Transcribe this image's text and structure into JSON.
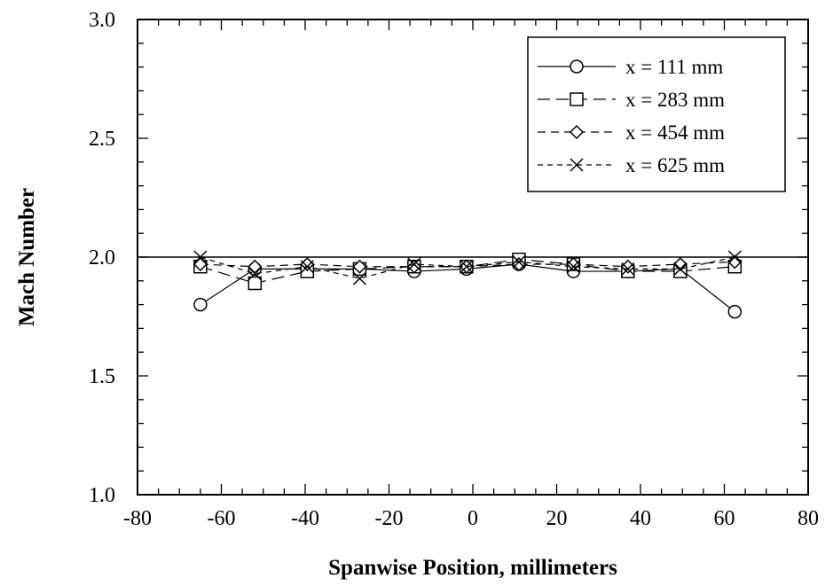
{
  "chart_data": {
    "type": "line",
    "title": "",
    "xlabel": "Spanwise  Position,  millimeters",
    "ylabel": "Mach Number",
    "xlim": [
      -80,
      80
    ],
    "ylim": [
      1.0,
      3.0
    ],
    "xticks": [
      "-80",
      "-60",
      "-40",
      "-20",
      "0",
      "20",
      "40",
      "60",
      "80"
    ],
    "yticks": [
      "1.0",
      "1.5",
      "2.0",
      "2.5",
      "3.0"
    ],
    "grid": false,
    "legend_position": "top-right",
    "reference_line": {
      "y": 2.0
    },
    "x": [
      -65,
      -52,
      -39.5,
      -27,
      -14,
      -1.5,
      11,
      24,
      37,
      49.5,
      62.5
    ],
    "series": [
      {
        "name": "x = 111 mm",
        "marker": "circle",
        "dash": "solid",
        "values": [
          1.8,
          1.95,
          1.95,
          1.95,
          1.94,
          1.95,
          1.97,
          1.94,
          1.94,
          1.95,
          1.77
        ]
      },
      {
        "name": "x = 283 mm",
        "marker": "square",
        "dash": "long-dash",
        "values": [
          1.96,
          1.89,
          1.94,
          1.95,
          1.96,
          1.96,
          1.99,
          1.97,
          1.94,
          1.94,
          1.96
        ]
      },
      {
        "name": "x = 454 mm",
        "marker": "diamond",
        "dash": "dash",
        "values": [
          1.97,
          1.96,
          1.97,
          1.96,
          1.96,
          1.96,
          1.97,
          1.97,
          1.96,
          1.97,
          1.98
        ]
      },
      {
        "name": "x = 625 mm",
        "marker": "x",
        "dash": "short-dash",
        "values": [
          2.0,
          1.93,
          1.96,
          1.91,
          1.97,
          1.96,
          1.98,
          1.96,
          1.95,
          1.95,
          2.0
        ]
      }
    ]
  }
}
